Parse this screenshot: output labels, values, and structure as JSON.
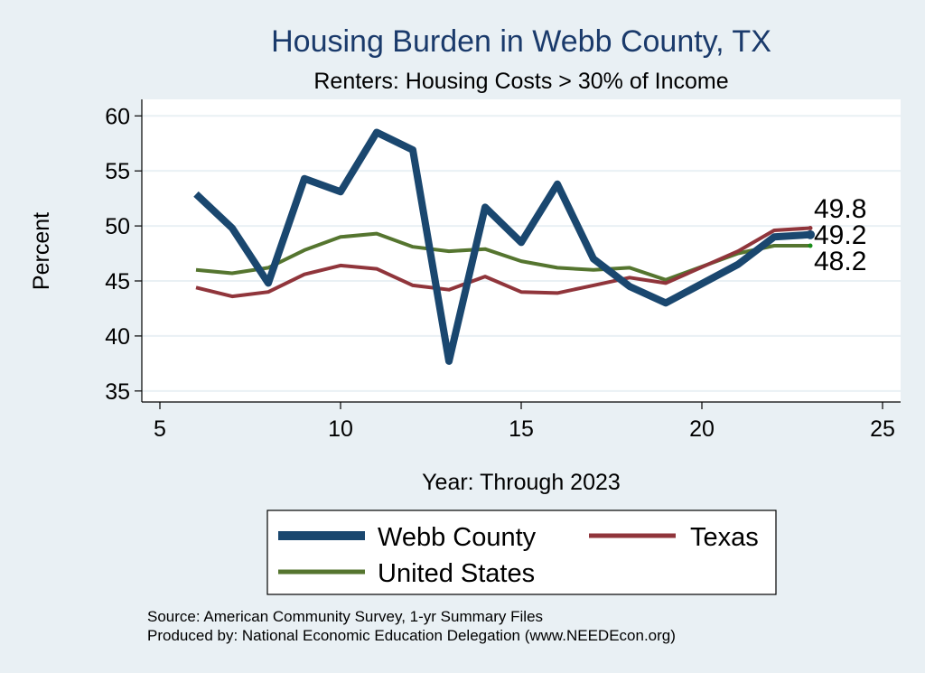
{
  "chart_data": {
    "type": "line",
    "title": "Housing Burden in Webb County, TX",
    "subtitle": "Renters: Housing Costs > 30% of Income",
    "xlabel": "Year: Through 2023",
    "ylabel": "Percent",
    "xlim": [
      4.5,
      25.5
    ],
    "ylim": [
      34,
      61.5
    ],
    "xticks": [
      5,
      10,
      15,
      20,
      25
    ],
    "yticks": [
      35,
      40,
      45,
      50,
      55,
      60
    ],
    "grid": true,
    "legend_position": "bottom",
    "series": [
      {
        "name": "Webb County",
        "color": "#1a476f",
        "x": [
          6,
          7,
          8,
          9,
          10,
          11,
          12,
          13,
          14,
          15,
          16,
          17,
          18,
          19,
          21,
          22,
          23
        ],
        "values": [
          52.9,
          49.8,
          44.8,
          54.3,
          53.1,
          58.5,
          56.9,
          37.7,
          51.7,
          48.5,
          53.8,
          47.0,
          44.5,
          43.0,
          46.5,
          49.0,
          49.2
        ]
      },
      {
        "name": "Texas",
        "color": "#90353b",
        "x": [
          6,
          7,
          8,
          9,
          10,
          11,
          12,
          13,
          14,
          15,
          16,
          17,
          18,
          19,
          21,
          22,
          23
        ],
        "values": [
          44.4,
          43.6,
          44.0,
          45.6,
          46.4,
          46.1,
          44.6,
          44.2,
          45.4,
          44.0,
          43.9,
          44.6,
          45.3,
          44.8,
          47.7,
          49.6,
          49.8
        ]
      },
      {
        "name": "United States",
        "color": "#55752f",
        "x": [
          6,
          7,
          8,
          9,
          10,
          11,
          12,
          13,
          14,
          15,
          16,
          17,
          18,
          19,
          21,
          22,
          23
        ],
        "values": [
          46.0,
          45.7,
          46.2,
          47.8,
          49.0,
          49.3,
          48.1,
          47.7,
          47.9,
          46.8,
          46.2,
          46.0,
          46.2,
          45.1,
          47.5,
          48.2,
          48.2
        ]
      }
    ],
    "end_labels": [
      "49.8",
      "49.2",
      "48.2"
    ]
  },
  "footer": {
    "source": "Source: American Community Survey, 1-yr Summary Files",
    "produced_by": "Produced by: National Economic Education Delegation (www.NEEDEcon.org)"
  }
}
